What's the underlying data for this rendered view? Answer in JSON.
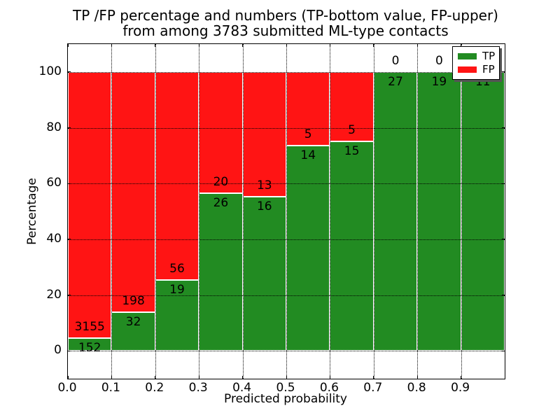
{
  "title": {
    "line1": "TP /FP percentage and numbers (TP-bottom value, FP-upper)",
    "line2": "from among 3783 submitted ML-type contacts"
  },
  "chart_data": {
    "type": "bar",
    "stacked": true,
    "percentage_normalized": true,
    "title": "TP /FP percentage and numbers (TP-bottom value, FP-upper) from among 3783 submitted ML-type contacts",
    "xlabel": "Predicted probability",
    "ylabel": "Percentage",
    "total_contacts": 3783,
    "xlim": [
      0.0,
      1.0
    ],
    "ylim": [
      -10,
      110
    ],
    "grid": true,
    "bin_edges": [
      0.0,
      0.1,
      0.2,
      0.3,
      0.4,
      0.5,
      0.6,
      0.7,
      0.8,
      0.9,
      1.0
    ],
    "x_tick_values": [
      0.0,
      0.1,
      0.2,
      0.3,
      0.4,
      0.5,
      0.6,
      0.7,
      0.8,
      0.9
    ],
    "x_tick_labels": [
      "0.0",
      "0.1",
      "0.2",
      "0.3",
      "0.4",
      "0.5",
      "0.6",
      "0.7",
      "0.8",
      "0.9"
    ],
    "y_tick_values": [
      0,
      20,
      40,
      60,
      80,
      100
    ],
    "y_tick_labels": [
      "0",
      "20",
      "40",
      "60",
      "80",
      "100"
    ],
    "series": [
      {
        "name": "TP",
        "color": "#228b22",
        "values": [
          152,
          32,
          19,
          26,
          16,
          14,
          15,
          27,
          19,
          11
        ]
      },
      {
        "name": "FP",
        "color": "#ff1414",
        "values": [
          3155,
          198,
          56,
          20,
          13,
          5,
          5,
          0,
          0,
          0
        ]
      }
    ],
    "legend": {
      "position": "upper right",
      "entries": [
        {
          "label": "TP",
          "color": "#228b22"
        },
        {
          "label": "FP",
          "color": "#ff1414"
        }
      ]
    }
  },
  "colors": {
    "tp": "#228b22",
    "fp": "#ff1414",
    "bar_edge": "#ffffff",
    "grid": "#000000",
    "frame": "#000000",
    "legend_shadow": "#555555",
    "background": "#ffffff"
  }
}
